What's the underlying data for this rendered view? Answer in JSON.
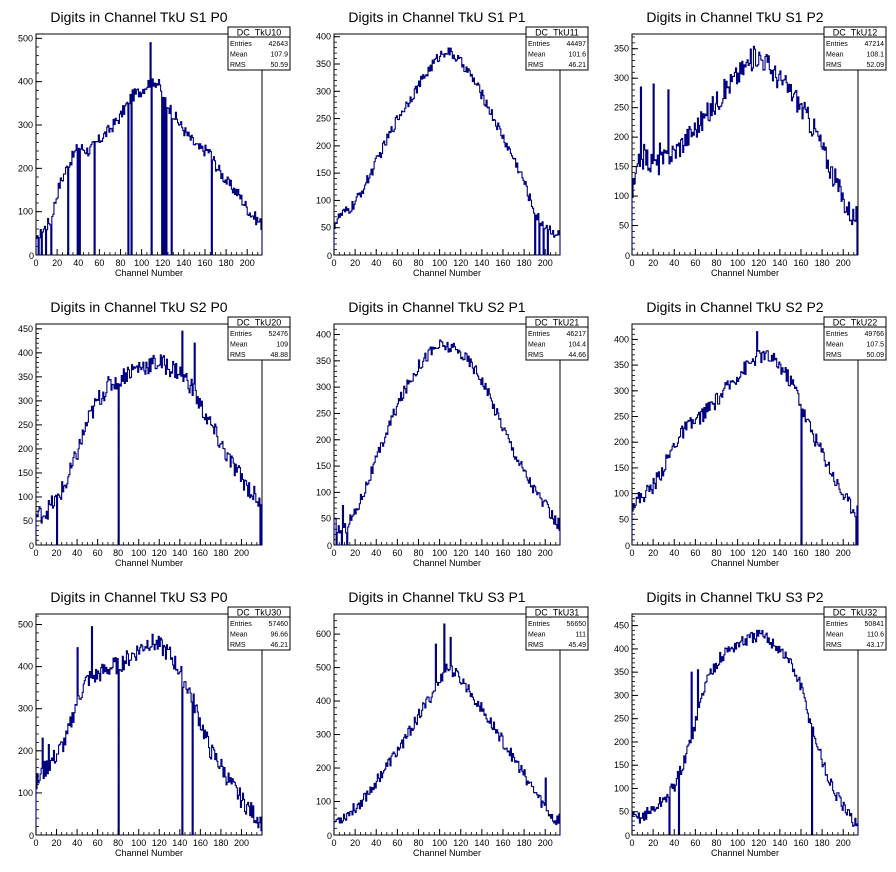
{
  "chart_data": [
    {
      "type": "histogram",
      "title": "Digits in Channel TkU S1 P0",
      "xlabel": "Channel Number",
      "xlim": [
        0,
        214
      ],
      "ylim": [
        0,
        510
      ],
      "xticks": [
        0,
        20,
        40,
        60,
        80,
        100,
        120,
        140,
        160,
        180,
        200
      ],
      "yticks": [
        100,
        200,
        300,
        400,
        500
      ],
      "yzero": "0",
      "stats": {
        "name": "DC_TkU10",
        "entries": "42643",
        "mean": "107.9",
        "rms": "50.59"
      },
      "profile": [
        [
          0,
          25
        ],
        [
          6,
          55
        ],
        [
          14,
          80
        ],
        [
          22,
          160
        ],
        [
          30,
          205
        ],
        [
          40,
          250
        ],
        [
          50,
          240
        ],
        [
          60,
          265
        ],
        [
          70,
          290
        ],
        [
          80,
          320
        ],
        [
          90,
          365
        ],
        [
          100,
          380
        ],
        [
          110,
          405
        ],
        [
          116,
          395
        ],
        [
          124,
          350
        ],
        [
          134,
          310
        ],
        [
          144,
          275
        ],
        [
          154,
          245
        ],
        [
          164,
          240
        ],
        [
          172,
          200
        ],
        [
          182,
          165
        ],
        [
          192,
          140
        ],
        [
          202,
          100
        ],
        [
          214,
          70
        ]
      ],
      "dips": [
        [
          2,
          0
        ],
        [
          5,
          0
        ],
        [
          9,
          0
        ],
        [
          14,
          0
        ],
        [
          30,
          0
        ],
        [
          39,
          0
        ],
        [
          41,
          0
        ],
        [
          55,
          0
        ],
        [
          87,
          0
        ],
        [
          90,
          0
        ],
        [
          109,
          0
        ],
        [
          119,
          0
        ],
        [
          121,
          0
        ],
        [
          123,
          0
        ],
        [
          128,
          0
        ],
        [
          166,
          0
        ]
      ],
      "spikes": [
        [
          108,
          490
        ]
      ],
      "noise": 14
    },
    {
      "type": "histogram",
      "title": "Digits in Channel TkU S1 P1",
      "xlabel": "Channel Number",
      "xlim": [
        0,
        214
      ],
      "ylim": [
        0,
        405
      ],
      "xticks": [
        0,
        20,
        40,
        60,
        80,
        100,
        120,
        140,
        160,
        180,
        200
      ],
      "yticks": [
        50,
        100,
        150,
        200,
        250,
        300,
        350,
        400
      ],
      "yzero": "0",
      "stats": {
        "name": "DC_TkU11",
        "entries": "44497",
        "mean": "101.6",
        "rms": "46.21"
      },
      "profile": [
        [
          0,
          55
        ],
        [
          6,
          72
        ],
        [
          14,
          82
        ],
        [
          20,
          95
        ],
        [
          30,
          130
        ],
        [
          40,
          170
        ],
        [
          50,
          210
        ],
        [
          60,
          250
        ],
        [
          70,
          280
        ],
        [
          80,
          310
        ],
        [
          90,
          340
        ],
        [
          100,
          365
        ],
        [
          106,
          375
        ],
        [
          114,
          365
        ],
        [
          124,
          345
        ],
        [
          134,
          315
        ],
        [
          144,
          280
        ],
        [
          154,
          240
        ],
        [
          164,
          200
        ],
        [
          172,
          170
        ],
        [
          180,
          135
        ],
        [
          186,
          100
        ],
        [
          192,
          70
        ],
        [
          200,
          55
        ],
        [
          206,
          45
        ],
        [
          214,
          35
        ]
      ],
      "dips": [
        [
          190,
          0
        ],
        [
          194,
          0
        ],
        [
          198,
          0
        ],
        [
          202,
          0
        ]
      ],
      "spikes": [],
      "noise": 10
    },
    {
      "type": "histogram",
      "title": "Digits in Channel TkU S1 P2",
      "xlabel": "Channel Number",
      "xlim": [
        0,
        214
      ],
      "ylim": [
        0,
        375
      ],
      "xticks": [
        0,
        20,
        40,
        60,
        80,
        100,
        120,
        140,
        160,
        180,
        200
      ],
      "yticks": [
        50,
        100,
        150,
        200,
        250,
        300,
        350
      ],
      "yzero": "0",
      "stats": {
        "name": "DC_TkU12",
        "entries": "47214",
        "mean": "108.1",
        "rms": "52.09"
      },
      "profile": [
        [
          0,
          100
        ],
        [
          6,
          150
        ],
        [
          12,
          170
        ],
        [
          20,
          150
        ],
        [
          30,
          160
        ],
        [
          40,
          175
        ],
        [
          50,
          195
        ],
        [
          60,
          215
        ],
        [
          70,
          235
        ],
        [
          80,
          260
        ],
        [
          90,
          285
        ],
        [
          100,
          305
        ],
        [
          110,
          325
        ],
        [
          118,
          340
        ],
        [
          126,
          330
        ],
        [
          134,
          310
        ],
        [
          144,
          290
        ],
        [
          154,
          270
        ],
        [
          164,
          240
        ],
        [
          174,
          210
        ],
        [
          184,
          165
        ],
        [
          194,
          120
        ],
        [
          204,
          80
        ],
        [
          210,
          65
        ]
      ],
      "dips": [
        [
          213,
          0
        ]
      ],
      "spikes": [
        [
          8,
          285
        ],
        [
          20,
          290
        ],
        [
          26,
          190
        ],
        [
          34,
          280
        ]
      ],
      "noise": 20
    },
    {
      "type": "histogram",
      "title": "Digits in Channel TkU S2 P0",
      "xlabel": "Channel Number",
      "xlim": [
        0,
        220
      ],
      "ylim": [
        0,
        460
      ],
      "xticks": [
        0,
        20,
        40,
        60,
        80,
        100,
        120,
        140,
        160,
        180,
        200
      ],
      "yticks": [
        50,
        100,
        150,
        200,
        250,
        300,
        350,
        400,
        450
      ],
      "yzero": "0",
      "stats": {
        "name": "DC_TkU20",
        "entries": "52476",
        "mean": "109",
        "rms": "48.88"
      },
      "profile": [
        [
          0,
          60
        ],
        [
          10,
          70
        ],
        [
          20,
          95
        ],
        [
          30,
          130
        ],
        [
          40,
          190
        ],
        [
          50,
          255
        ],
        [
          60,
          300
        ],
        [
          70,
          330
        ],
        [
          80,
          345
        ],
        [
          90,
          360
        ],
        [
          100,
          370
        ],
        [
          110,
          375
        ],
        [
          120,
          380
        ],
        [
          130,
          370
        ],
        [
          140,
          360
        ],
        [
          150,
          335
        ],
        [
          160,
          290
        ],
        [
          170,
          250
        ],
        [
          180,
          210
        ],
        [
          190,
          170
        ],
        [
          200,
          140
        ],
        [
          210,
          110
        ],
        [
          218,
          90
        ]
      ],
      "dips": [
        [
          20,
          0
        ],
        [
          80,
          0
        ],
        [
          218,
          0
        ]
      ],
      "spikes": [
        [
          142,
          445
        ],
        [
          154,
          420
        ]
      ],
      "noise": 20
    },
    {
      "type": "histogram",
      "title": "Digits in Channel TkU S2 P1",
      "xlabel": "Channel Number",
      "xlim": [
        0,
        214
      ],
      "ylim": [
        0,
        420
      ],
      "xticks": [
        0,
        20,
        40,
        60,
        80,
        100,
        120,
        140,
        160,
        180,
        200
      ],
      "yticks": [
        50,
        100,
        150,
        200,
        250,
        300,
        350,
        400
      ],
      "yzero": "0",
      "stats": {
        "name": "DC_TkU21",
        "entries": "46217",
        "mean": "104.4",
        "rms": "44.66"
      },
      "profile": [
        [
          0,
          45
        ],
        [
          8,
          20
        ],
        [
          14,
          45
        ],
        [
          20,
          60
        ],
        [
          30,
          110
        ],
        [
          40,
          160
        ],
        [
          50,
          215
        ],
        [
          60,
          265
        ],
        [
          70,
          305
        ],
        [
          80,
          340
        ],
        [
          90,
          365
        ],
        [
          100,
          380
        ],
        [
          110,
          375
        ],
        [
          120,
          365
        ],
        [
          130,
          345
        ],
        [
          140,
          315
        ],
        [
          150,
          270
        ],
        [
          160,
          225
        ],
        [
          170,
          180
        ],
        [
          180,
          140
        ],
        [
          190,
          105
        ],
        [
          200,
          75
        ],
        [
          208,
          50
        ],
        [
          214,
          35
        ]
      ],
      "dips": [
        [
          2,
          0
        ],
        [
          7,
          0
        ],
        [
          12,
          0
        ]
      ],
      "spikes": [
        [
          8,
          75
        ]
      ],
      "noise": 12
    },
    {
      "type": "histogram",
      "title": "Digits in Channel TkU S2 P2",
      "xlabel": "Channel Number",
      "xlim": [
        0,
        214
      ],
      "ylim": [
        0,
        430
      ],
      "xticks": [
        0,
        20,
        40,
        60,
        80,
        100,
        120,
        140,
        160,
        180,
        200
      ],
      "yticks": [
        50,
        100,
        150,
        200,
        250,
        300,
        350,
        400
      ],
      "yzero": "0",
      "stats": {
        "name": "DC_TkU22",
        "entries": "49766",
        "mean": "107.5",
        "rms": "50.09"
      },
      "profile": [
        [
          0,
          80
        ],
        [
          10,
          95
        ],
        [
          20,
          115
        ],
        [
          30,
          150
        ],
        [
          40,
          195
        ],
        [
          50,
          225
        ],
        [
          60,
          240
        ],
        [
          70,
          260
        ],
        [
          80,
          280
        ],
        [
          90,
          305
        ],
        [
          100,
          330
        ],
        [
          110,
          350
        ],
        [
          120,
          370
        ],
        [
          130,
          365
        ],
        [
          140,
          350
        ],
        [
          150,
          320
        ],
        [
          156,
          300
        ],
        [
          164,
          250
        ],
        [
          174,
          205
        ],
        [
          184,
          165
        ],
        [
          194,
          120
        ],
        [
          204,
          85
        ],
        [
          210,
          70
        ]
      ],
      "dips": [
        [
          160,
          0
        ],
        [
          212,
          0
        ]
      ],
      "spikes": [
        [
          118,
          415
        ]
      ],
      "noise": 15
    },
    {
      "type": "histogram",
      "title": "Digits in Channel TkU S3 P0",
      "xlabel": "Channel Number",
      "xlim": [
        0,
        220
      ],
      "ylim": [
        0,
        525
      ],
      "xticks": [
        0,
        20,
        40,
        60,
        80,
        100,
        120,
        140,
        160,
        180,
        200
      ],
      "yticks": [
        100,
        200,
        300,
        400,
        500
      ],
      "yzero": "0",
      "stats": {
        "name": "DC_TkU30",
        "entries": "57460",
        "mean": "96.66",
        "rms": "46.21"
      },
      "profile": [
        [
          0,
          120
        ],
        [
          10,
          160
        ],
        [
          20,
          190
        ],
        [
          30,
          230
        ],
        [
          40,
          320
        ],
        [
          50,
          370
        ],
        [
          60,
          380
        ],
        [
          70,
          395
        ],
        [
          80,
          405
        ],
        [
          90,
          420
        ],
        [
          100,
          440
        ],
        [
          110,
          460
        ],
        [
          120,
          450
        ],
        [
          130,
          430
        ],
        [
          140,
          390
        ],
        [
          150,
          340
        ],
        [
          160,
          270
        ],
        [
          170,
          200
        ],
        [
          180,
          165
        ],
        [
          190,
          120
        ],
        [
          200,
          85
        ],
        [
          210,
          55
        ],
        [
          220,
          30
        ]
      ],
      "dips": [
        [
          80,
          0
        ],
        [
          142,
          0
        ],
        [
          152,
          0
        ]
      ],
      "spikes": [
        [
          40,
          445
        ],
        [
          54,
          495
        ],
        [
          6,
          230
        ],
        [
          12,
          215
        ]
      ],
      "noise": 22
    },
    {
      "type": "histogram",
      "title": "Digits in Channel TkU S3 P1",
      "xlabel": "Channel Number",
      "xlim": [
        0,
        214
      ],
      "ylim": [
        0,
        660
      ],
      "xticks": [
        0,
        20,
        40,
        60,
        80,
        100,
        120,
        140,
        160,
        180,
        200
      ],
      "yticks": [
        100,
        200,
        300,
        400,
        500,
        600
      ],
      "yzero": "0",
      "stats": {
        "name": "DC_TkU31",
        "entries": "56650",
        "mean": "111",
        "rms": "45.49"
      },
      "profile": [
        [
          0,
          40
        ],
        [
          10,
          55
        ],
        [
          20,
          80
        ],
        [
          30,
          115
        ],
        [
          40,
          160
        ],
        [
          50,
          205
        ],
        [
          60,
          250
        ],
        [
          70,
          300
        ],
        [
          80,
          355
        ],
        [
          90,
          405
        ],
        [
          100,
          455
        ],
        [
          106,
          500
        ],
        [
          114,
          485
        ],
        [
          124,
          450
        ],
        [
          134,
          405
        ],
        [
          144,
          355
        ],
        [
          154,
          310
        ],
        [
          164,
          260
        ],
        [
          174,
          210
        ],
        [
          184,
          160
        ],
        [
          194,
          110
        ],
        [
          204,
          65
        ],
        [
          210,
          40
        ],
        [
          214,
          55
        ]
      ],
      "dips": [],
      "spikes": [
        [
          104,
          630
        ],
        [
          96,
          570
        ],
        [
          110,
          590
        ],
        [
          200,
          170
        ]
      ],
      "noise": 18
    },
    {
      "type": "histogram",
      "title": "Digits in Channel TkU S3 P2",
      "xlabel": "Channel Number",
      "xlim": [
        0,
        214
      ],
      "ylim": [
        0,
        475
      ],
      "xticks": [
        0,
        20,
        40,
        60,
        80,
        100,
        120,
        140,
        160,
        180,
        200
      ],
      "yticks": [
        50,
        100,
        150,
        200,
        250,
        300,
        350,
        400,
        450
      ],
      "yzero": "0",
      "stats": {
        "name": "DC_TkU32",
        "entries": "50841",
        "mean": "110.6",
        "rms": "43.17"
      },
      "profile": [
        [
          0,
          35
        ],
        [
          10,
          40
        ],
        [
          20,
          55
        ],
        [
          30,
          75
        ],
        [
          40,
          105
        ],
        [
          50,
          160
        ],
        [
          60,
          240
        ],
        [
          70,
          330
        ],
        [
          80,
          370
        ],
        [
          90,
          395
        ],
        [
          100,
          410
        ],
        [
          110,
          420
        ],
        [
          120,
          430
        ],
        [
          130,
          420
        ],
        [
          140,
          400
        ],
        [
          150,
          370
        ],
        [
          160,
          320
        ],
        [
          168,
          250
        ],
        [
          176,
          190
        ],
        [
          186,
          120
        ],
        [
          196,
          75
        ],
        [
          204,
          45
        ],
        [
          210,
          30
        ]
      ],
      "dips": [
        [
          35,
          0
        ],
        [
          44,
          0
        ],
        [
          170,
          0
        ]
      ],
      "spikes": [
        [
          56,
          350
        ],
        [
          62,
          355
        ]
      ],
      "noise": 14
    }
  ]
}
